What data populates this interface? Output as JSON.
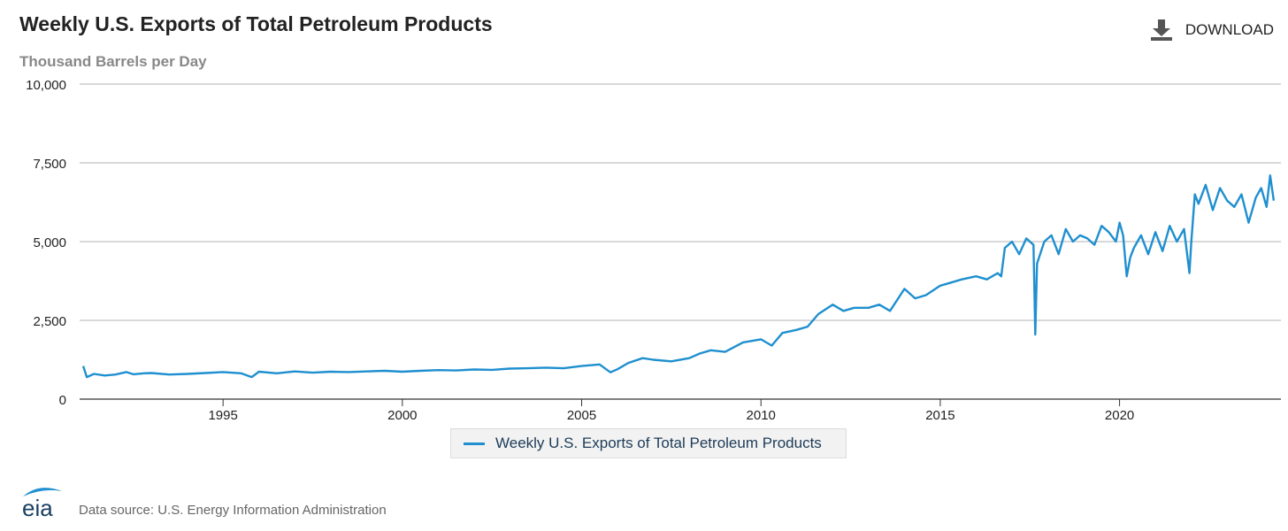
{
  "header": {
    "title": "Weekly U.S. Exports of Total Petroleum Products",
    "subtitle": "Thousand Barrels per Day",
    "download_label": "DOWNLOAD"
  },
  "footer": {
    "logo_text": "eia",
    "source_text": "Data source: U.S. Energy Information Administration"
  },
  "colors": {
    "series": "#1f8fcf",
    "grid": "#b3b3b3",
    "axis": "#333333"
  },
  "chart_data": {
    "type": "line",
    "title": "Weekly U.S. Exports of Total Petroleum Products",
    "ylabel": "Thousand Barrels per Day",
    "xlabel": "",
    "xlim": [
      1991.0,
      2024.5
    ],
    "ylim": [
      0,
      10000
    ],
    "y_ticks": [
      0,
      2500,
      5000,
      7500,
      10000
    ],
    "y_tick_labels": [
      "0",
      "2,500",
      "5,000",
      "7,500",
      "10,000"
    ],
    "x_ticks": [
      1995,
      2000,
      2005,
      2010,
      2015,
      2020
    ],
    "x_tick_labels": [
      "1995",
      "2000",
      "2005",
      "2010",
      "2015",
      "2020"
    ],
    "grid": "horizontal",
    "legend_position": "bottom-center",
    "series": [
      {
        "name": "Weekly U.S. Exports of Total Petroleum Products",
        "x": [
          1991.1,
          1991.2,
          1991.4,
          1991.7,
          1992.0,
          1992.3,
          1992.5,
          1992.8,
          1993.0,
          1993.5,
          1994.0,
          1994.5,
          1995.0,
          1995.5,
          1995.8,
          1996.0,
          1996.5,
          1997.0,
          1997.5,
          1998.0,
          1998.5,
          1999.0,
          1999.5,
          2000.0,
          2000.5,
          2001.0,
          2001.5,
          2002.0,
          2002.5,
          2003.0,
          2003.5,
          2004.0,
          2004.5,
          2005.0,
          2005.5,
          2005.8,
          2006.0,
          2006.3,
          2006.7,
          2007.0,
          2007.5,
          2008.0,
          2008.3,
          2008.6,
          2009.0,
          2009.5,
          2010.0,
          2010.3,
          2010.6,
          2011.0,
          2011.3,
          2011.6,
          2012.0,
          2012.3,
          2012.6,
          2013.0,
          2013.3,
          2013.6,
          2014.0,
          2014.3,
          2014.6,
          2015.0,
          2015.3,
          2015.6,
          2016.0,
          2016.3,
          2016.6,
          2016.7,
          2016.8,
          2017.0,
          2017.2,
          2017.4,
          2017.6,
          2017.65,
          2017.7,
          2017.9,
          2018.1,
          2018.3,
          2018.5,
          2018.7,
          2018.9,
          2019.1,
          2019.3,
          2019.5,
          2019.7,
          2019.9,
          2020.0,
          2020.1,
          2020.2,
          2020.3,
          2020.4,
          2020.6,
          2020.8,
          2021.0,
          2021.2,
          2021.4,
          2021.6,
          2021.8,
          2021.95,
          2022.0,
          2022.1,
          2022.2,
          2022.4,
          2022.6,
          2022.8,
          2023.0,
          2023.2,
          2023.4,
          2023.6,
          2023.8,
          2023.95,
          2024.1,
          2024.2,
          2024.3
        ],
        "y": [
          1050,
          700,
          800,
          750,
          780,
          860,
          790,
          820,
          830,
          780,
          800,
          830,
          860,
          820,
          700,
          870,
          820,
          880,
          840,
          870,
          860,
          880,
          900,
          870,
          900,
          920,
          910,
          940,
          930,
          970,
          980,
          1000,
          980,
          1050,
          1100,
          850,
          950,
          1150,
          1300,
          1250,
          1200,
          1300,
          1450,
          1550,
          1500,
          1800,
          1900,
          1700,
          2100,
          2200,
          2300,
          2700,
          3000,
          2800,
          2900,
          2900,
          3000,
          2800,
          3500,
          3200,
          3300,
          3600,
          3700,
          3800,
          3900,
          3800,
          4000,
          3900,
          4800,
          5000,
          4600,
          5100,
          4900,
          2050,
          4300,
          5000,
          5200,
          4600,
          5400,
          5000,
          5200,
          5100,
          4900,
          5500,
          5300,
          5000,
          5600,
          5200,
          3900,
          4500,
          4800,
          5200,
          4600,
          5300,
          4700,
          5500,
          5000,
          5400,
          4000,
          5000,
          6500,
          6200,
          6800,
          6000,
          6700,
          6300,
          6100,
          6500,
          5600,
          6400,
          6700,
          6100,
          7100,
          6300
        ]
      }
    ]
  }
}
